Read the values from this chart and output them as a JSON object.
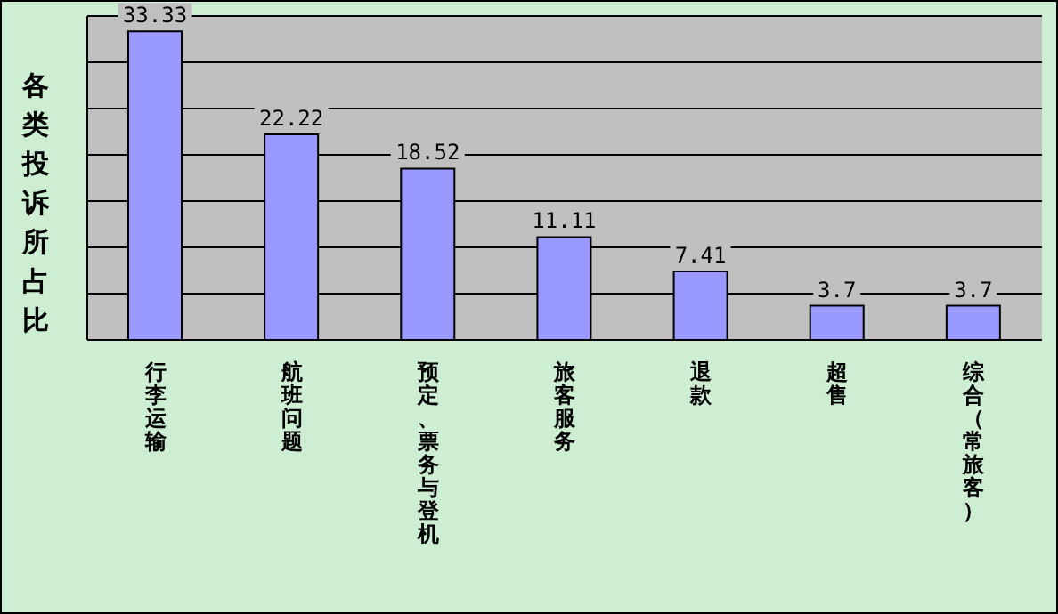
{
  "chart_data": {
    "type": "bar",
    "ylabel": "各类投诉所占比",
    "categories": [
      "行李运输",
      "航班问题",
      "预定、票务与登机",
      "旅客服务",
      "退款",
      "超售",
      "综合（常旅客）"
    ],
    "values": [
      33.33,
      22.22,
      18.52,
      11.11,
      7.41,
      3.7,
      3.7
    ],
    "color": "#9999ff",
    "ylim": [
      0,
      35
    ],
    "tick_labels": "x",
    "grid": "y",
    "data_labels": true
  }
}
